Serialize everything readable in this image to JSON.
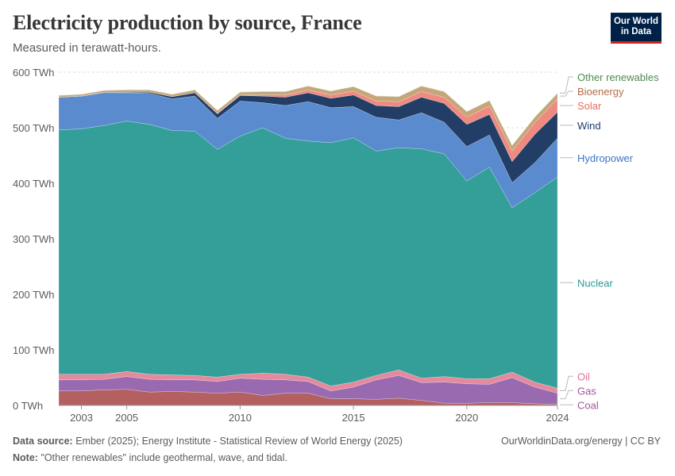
{
  "header": {
    "title": "Electricity production by source, France",
    "subtitle": "Measured in terawatt-hours.",
    "logo_line1": "Our World",
    "logo_line2": "in Data"
  },
  "footer": {
    "source_label": "Data source:",
    "source_text": "Ember (2025); Energy Institute - Statistical Review of World Energy (2025)",
    "note_label": "Note:",
    "note_text": "\"Other renewables\" include geothermal, wave, and tidal.",
    "credit": "OurWorldinData.org/energy | CC BY"
  },
  "chart_data": {
    "type": "area",
    "stacked": true,
    "x": [
      2002,
      2003,
      2004,
      2005,
      2006,
      2007,
      2008,
      2009,
      2010,
      2011,
      2012,
      2013,
      2014,
      2015,
      2016,
      2017,
      2018,
      2019,
      2020,
      2021,
      2022,
      2023,
      2024
    ],
    "x_ticks": [
      2003,
      2005,
      2010,
      2015,
      2020,
      2024
    ],
    "y_ticks": [
      0,
      100,
      200,
      300,
      400,
      500,
      600
    ],
    "y_tick_labels": [
      "0 TWh",
      "100 TWh",
      "200 TWh",
      "300 TWh",
      "400 TWh",
      "500 TWh",
      "600 TWh"
    ],
    "ylim": [
      0,
      600
    ],
    "unit": "TWh",
    "series": [
      {
        "name": "Coal",
        "color": "#a2559c",
        "fill": "#b46060",
        "values": [
          26,
          26,
          28,
          29,
          24,
          25,
          24,
          22,
          24,
          18,
          22,
          22,
          12,
          12,
          11,
          13,
          9,
          4,
          4,
          5,
          5,
          3,
          2
        ]
      },
      {
        "name": "Gas",
        "color": "#a2559c",
        "fill": "#9a6ab1",
        "values": [
          20,
          20,
          19,
          23,
          23,
          21,
          22,
          21,
          25,
          29,
          24,
          21,
          14,
          21,
          35,
          41,
          32,
          38,
          35,
          33,
          45,
          30,
          20
        ]
      },
      {
        "name": "Oil",
        "color": "#e56e8f",
        "fill": "#e5899d",
        "values": [
          10,
          10,
          9,
          9,
          9,
          9,
          8,
          8,
          7,
          11,
          10,
          8,
          9,
          9,
          8,
          10,
          8,
          10,
          9,
          10,
          10,
          9,
          9
        ]
      },
      {
        "name": "Nuclear",
        "color": "#2a9a95",
        "fill": "#339f98",
        "values": [
          440,
          442,
          448,
          451,
          450,
          440,
          440,
          410,
          429,
          442,
          425,
          425,
          438,
          440,
          404,
          400,
          413,
          401,
          356,
          381,
          296,
          341,
          380
        ]
      },
      {
        "name": "Hydropower",
        "color": "#3d73c4",
        "fill": "#5b8bcf",
        "values": [
          59,
          59,
          59,
          51,
          56,
          57,
          63,
          56,
          63,
          45,
          59,
          71,
          63,
          56,
          61,
          50,
          65,
          57,
          62,
          58,
          45,
          54,
          70
        ]
      },
      {
        "name": "Wind",
        "color": "#1c3c6e",
        "fill": "#233e66",
        "values": [
          0,
          0,
          1,
          1,
          2,
          4,
          6,
          8,
          10,
          12,
          15,
          16,
          17,
          21,
          21,
          24,
          28,
          34,
          40,
          37,
          38,
          51,
          47
        ]
      },
      {
        "name": "Solar",
        "color": "#e66f5f",
        "fill": "#ee8a80",
        "values": [
          0,
          0,
          0,
          0,
          0,
          0,
          0,
          1,
          1,
          2,
          4,
          5,
          6,
          7,
          8,
          9,
          10,
          11,
          13,
          15,
          19,
          21,
          24
        ]
      },
      {
        "name": "Bioenergy",
        "color": "#b56b48",
        "fill": "#c6a679",
        "values": [
          3,
          3,
          3,
          4,
          4,
          4,
          5,
          5,
          5,
          6,
          6,
          7,
          7,
          8,
          9,
          9,
          10,
          10,
          10,
          10,
          10,
          10,
          10
        ]
      },
      {
        "name": "Other renewables",
        "color": "#4c8b4f",
        "fill": "#8fbb84",
        "values": [
          0.5,
          0.5,
          0.5,
          0.5,
          0.5,
          0.5,
          0.5,
          0.5,
          0.5,
          0.5,
          0.5,
          0.5,
          0.5,
          0.5,
          0.5,
          0.5,
          0.5,
          0.5,
          0.5,
          0.5,
          0.5,
          0.5,
          0.5
        ]
      }
    ]
  }
}
